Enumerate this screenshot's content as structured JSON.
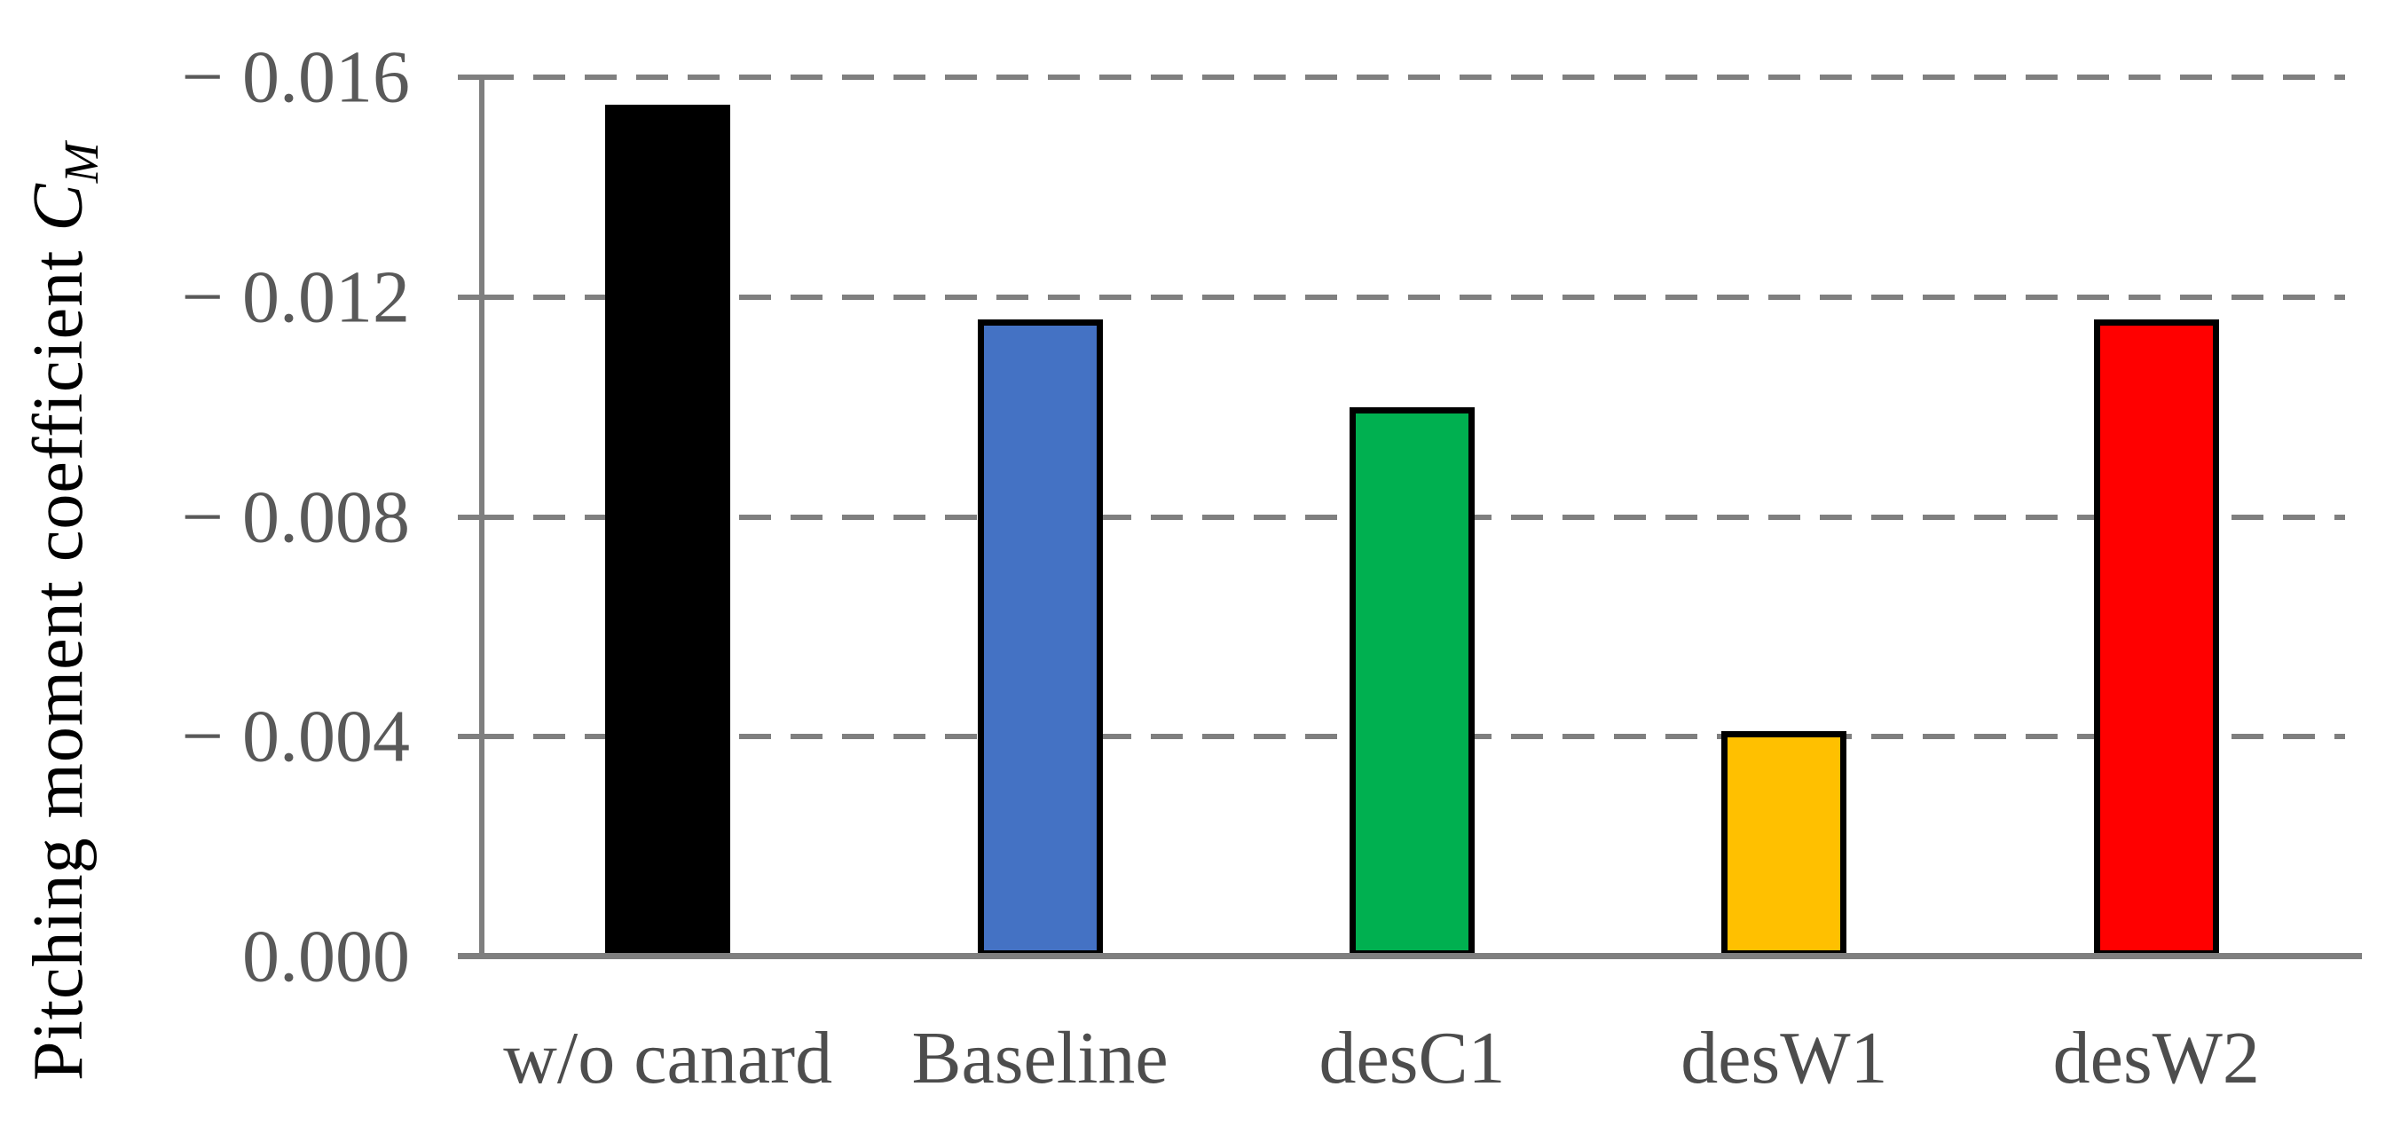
{
  "chart_data": {
    "type": "bar",
    "title": "",
    "ylabel_text": "Pitching moment coefficient ",
    "ylabel_symbol": "C",
    "ylabel_symbol_sub": "M",
    "categories": [
      "w/o canard",
      "Baseline",
      "desC1",
      "desW1",
      "desW2"
    ],
    "values": [
      -0.0155,
      -0.0116,
      -0.01,
      -0.0041,
      -0.0116
    ],
    "bar_colors": [
      "#000000",
      "#4472C4",
      "#00B050",
      "#FFC000",
      "#FF0000"
    ],
    "bar_border_color": "#000000",
    "yticks": [
      {
        "label": "− 0.016",
        "value": -0.016
      },
      {
        "label": "− 0.012",
        "value": -0.012
      },
      {
        "label": "− 0.008",
        "value": -0.008
      },
      {
        "label": "− 0.004",
        "value": -0.004
      },
      {
        "label": "0.000",
        "value": 0
      }
    ],
    "ylim": [
      0,
      -0.016
    ],
    "axis_reversed": true,
    "grid": "horizontal-dashed",
    "gridline_color": "#7f7f7f",
    "axis_color": "#7f7f7f",
    "tick_label_color": "#595959",
    "category_label_color": "#4d4d4d",
    "legend": "none"
  }
}
